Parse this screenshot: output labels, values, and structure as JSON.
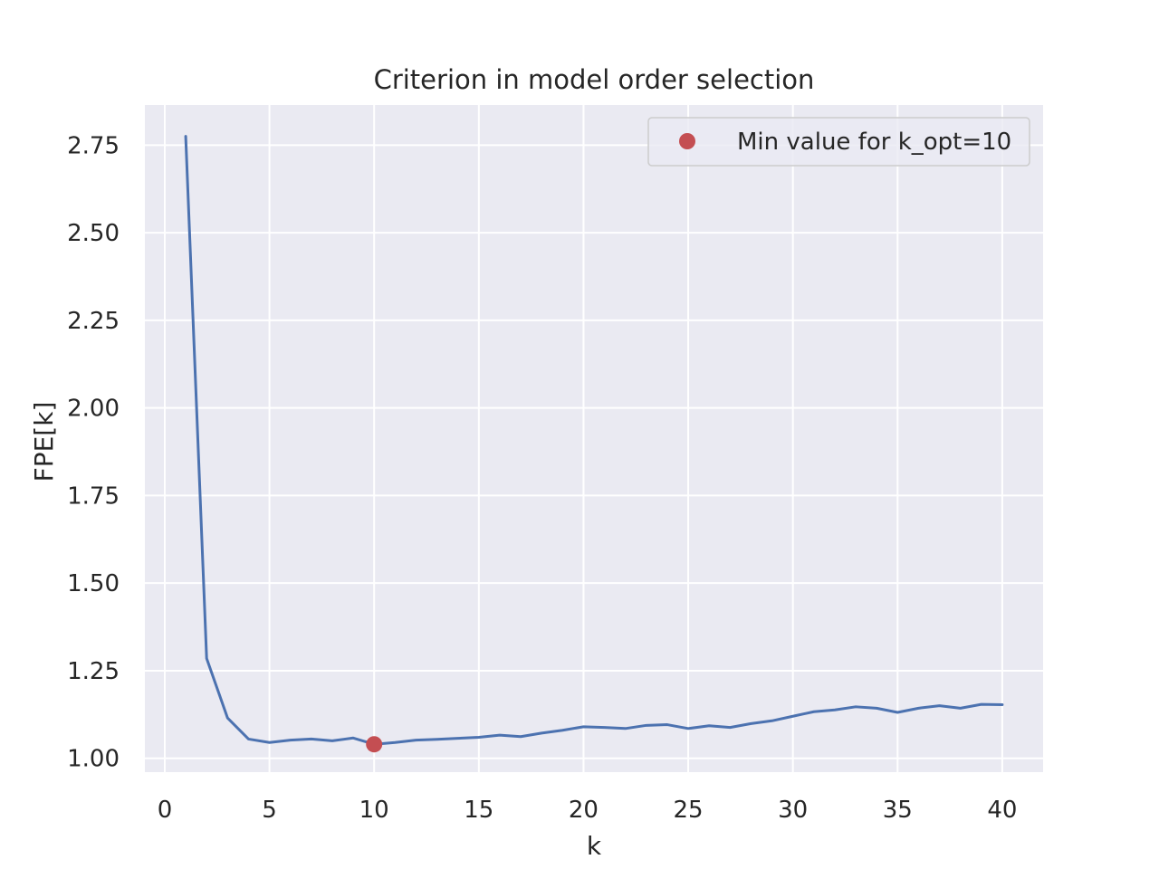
{
  "chart_data": {
    "type": "line",
    "title": "Criterion in model order selection",
    "xlabel": "k",
    "ylabel": "FPE[k]",
    "xlim": [
      -0.95,
      41.95
    ],
    "ylim": [
      0.9605,
      2.8645
    ],
    "xticks": [
      0,
      5,
      10,
      15,
      20,
      25,
      30,
      35,
      40
    ],
    "xtick_labels": [
      "0",
      "5",
      "10",
      "15",
      "20",
      "25",
      "30",
      "35",
      "40"
    ],
    "yticks": [
      1.0,
      1.25,
      1.5,
      1.75,
      2.0,
      2.25,
      2.5,
      2.75
    ],
    "ytick_labels": [
      "1.00",
      "1.25",
      "1.50",
      "1.75",
      "2.00",
      "2.25",
      "2.50",
      "2.75"
    ],
    "grid": true,
    "legend_position": "top-right",
    "series": [
      {
        "color": "#4c72b0",
        "x": [
          1,
          2,
          3,
          4,
          5,
          6,
          7,
          8,
          9,
          10,
          11,
          12,
          13,
          14,
          15,
          16,
          17,
          18,
          19,
          20,
          21,
          22,
          23,
          24,
          25,
          26,
          27,
          28,
          29,
          30,
          31,
          32,
          33,
          34,
          35,
          36,
          37,
          38,
          39,
          40
        ],
        "values": [
          2.775,
          1.285,
          1.115,
          1.055,
          1.045,
          1.052,
          1.055,
          1.05,
          1.058,
          1.04,
          1.045,
          1.052,
          1.054,
          1.057,
          1.06,
          1.066,
          1.062,
          1.072,
          1.08,
          1.09,
          1.088,
          1.085,
          1.094,
          1.096,
          1.085,
          1.093,
          1.088,
          1.099,
          1.107,
          1.12,
          1.133,
          1.138,
          1.147,
          1.143,
          1.131,
          1.143,
          1.15,
          1.143,
          1.154,
          1.153
        ]
      },
      {
        "name": "Min value for k_opt=10",
        "color": "#c44e52",
        "marker": "circle",
        "x": [
          10
        ],
        "values": [
          1.04
        ]
      }
    ]
  },
  "colors": {
    "plot_background": "#eaeaf2",
    "grid": "#ffffff",
    "line": "#4c72b0",
    "marker": "#c44e52",
    "legend_border": "#cccccc"
  }
}
